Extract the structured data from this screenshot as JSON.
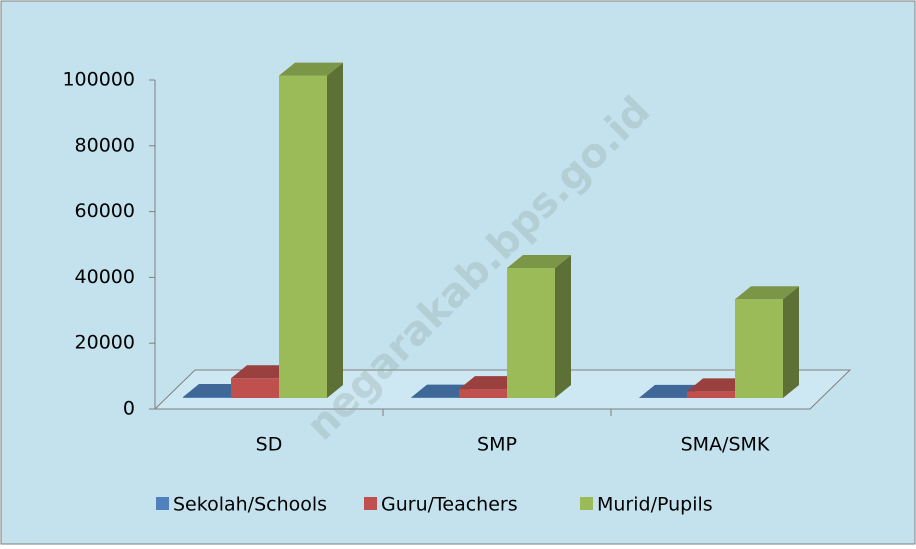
{
  "chart_data": {
    "type": "bar3d",
    "categories": [
      "SD",
      "SMP",
      "SMA/SMK"
    ],
    "series": [
      {
        "name": "Sekolah/Schools",
        "color": "#4f81bd",
        "values": [
          300,
          100,
          50
        ]
      },
      {
        "name": "Guru/Teachers",
        "color": "#c0504d",
        "values": [
          6000,
          2700,
          2000
        ]
      },
      {
        "name": "Murid/Pupils",
        "color": "#9bbb59",
        "values": [
          98000,
          39500,
          30000
        ]
      }
    ],
    "ylim": [
      0,
      100000
    ],
    "yticks": [
      0,
      20000,
      40000,
      60000,
      80000,
      100000
    ],
    "legend": "bottom",
    "watermark": "negarakab.bps.go.id"
  }
}
